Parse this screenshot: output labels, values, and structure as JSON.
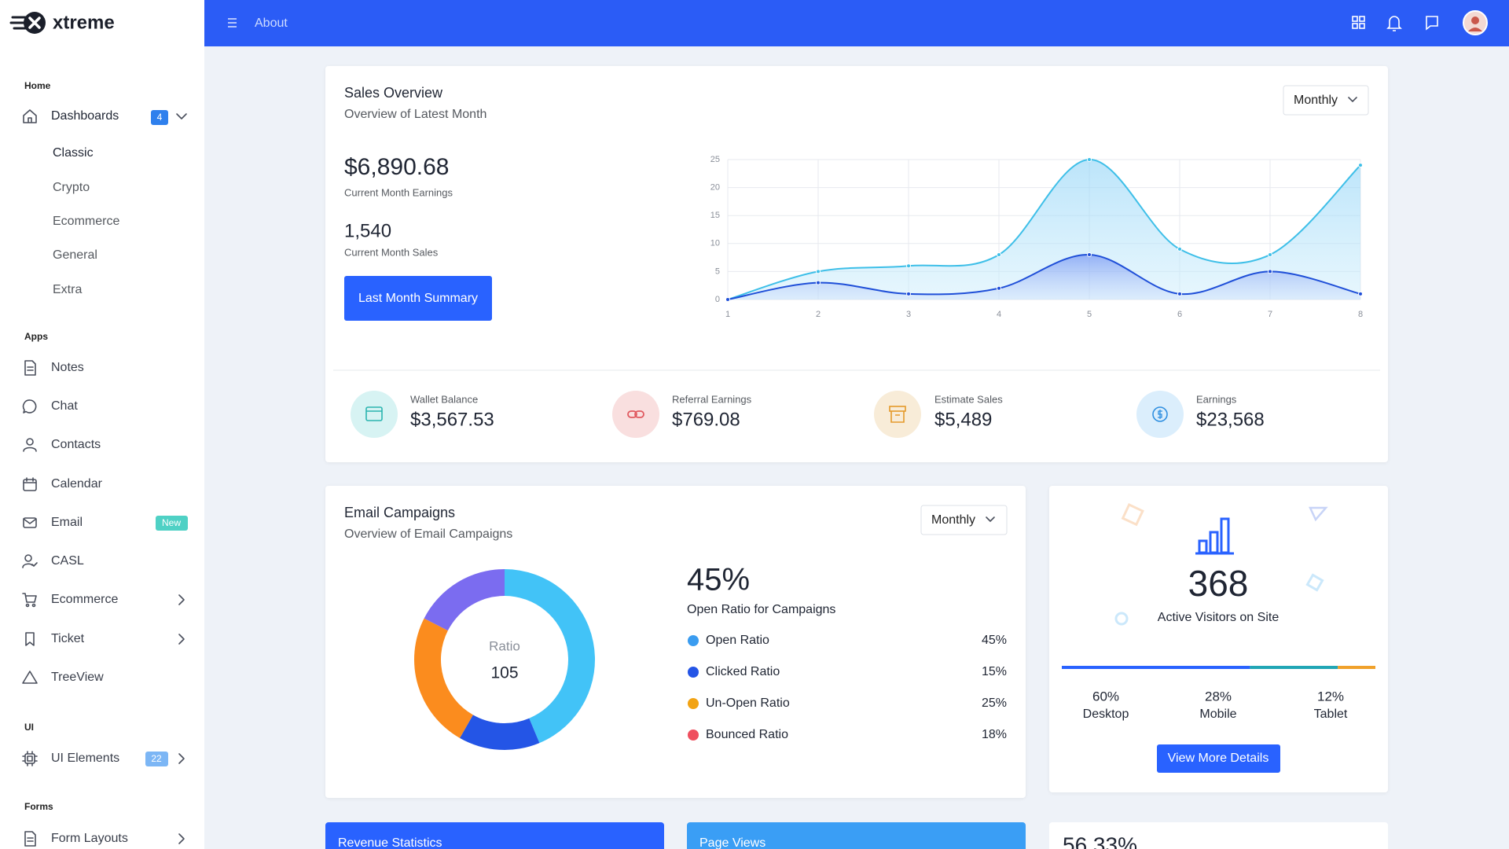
{
  "brand": "xtreme",
  "topbar": {
    "link": "About"
  },
  "sidebar": {
    "sections": [
      {
        "title": "Home",
        "items": [
          {
            "label": "Dashboards",
            "badge": "4",
            "children": [
              "Classic",
              "Crypto",
              "Ecommerce",
              "General",
              "Extra"
            ]
          }
        ]
      },
      {
        "title": "Apps",
        "items": [
          {
            "label": "Notes"
          },
          {
            "label": "Chat"
          },
          {
            "label": "Contacts"
          },
          {
            "label": "Calendar"
          },
          {
            "label": "Email",
            "badge": "New"
          },
          {
            "label": "CASL"
          },
          {
            "label": "Ecommerce"
          },
          {
            "label": "Ticket"
          },
          {
            "label": "TreeView"
          }
        ]
      },
      {
        "title": "UI",
        "items": [
          {
            "label": "UI Elements",
            "badge": "22"
          }
        ]
      },
      {
        "title": "Forms",
        "items": [
          {
            "label": "Form Layouts"
          }
        ]
      }
    ]
  },
  "sales_overview": {
    "title": "Sales Overview",
    "subtitle": "Overview of Latest Month",
    "filter": "Monthly",
    "earnings": {
      "value": "$6,890.68",
      "label": "Current Month Earnings"
    },
    "sales": {
      "value": "1,540",
      "label": "Current Month Sales"
    },
    "button": "Last Month Summary",
    "stats": [
      {
        "label": "Wallet Balance",
        "value": "$3,567.53"
      },
      {
        "label": "Referral Earnings",
        "value": "$769.08"
      },
      {
        "label": "Estimate Sales",
        "value": "$5,489"
      },
      {
        "label": "Earnings",
        "value": "$23,568"
      }
    ],
    "chart_data": {
      "type": "area",
      "x": [
        1,
        2,
        3,
        4,
        5,
        6,
        7,
        8
      ],
      "xlim": [
        1,
        8
      ],
      "xticks": [
        1,
        2,
        3,
        4,
        5,
        6,
        7,
        8
      ],
      "ylim": [
        0,
        25
      ],
      "yticks": [
        0,
        5,
        10,
        15,
        20,
        25
      ],
      "grid": true,
      "series": [
        {
          "color": "#3ebfe8",
          "values": [
            0,
            5,
            6,
            8,
            25,
            9,
            8,
            24
          ]
        },
        {
          "color": "#1f4fd8",
          "values": [
            0,
            3,
            1,
            2,
            8,
            1,
            5,
            1
          ]
        }
      ]
    }
  },
  "email_campaigns": {
    "title": "Email Campaigns",
    "subtitle": "Overview of Email Campaigns",
    "filter": "Monthly",
    "headline": "45%",
    "headline_label": "Open Ratio for Campaigns",
    "chart_data": {
      "type": "donut",
      "center_label": "Ratio",
      "center_value": "105",
      "categories": [
        "Open Ratio",
        "Clicked Ratio",
        "Un-Open Ratio",
        "Bounced Ratio"
      ],
      "values": [
        45,
        15,
        25,
        18
      ],
      "value_labels": [
        "45%",
        "15%",
        "25%",
        "18%"
      ],
      "colors": [
        "#3a9cf0",
        "#2455e6",
        "#f2a313",
        "#ef4f5f"
      ],
      "slice_colors": [
        "#42c3f7",
        "#2455e6",
        "#fb8c1e",
        "#7b6cf0"
      ]
    }
  },
  "visitors": {
    "value": "368",
    "label": "Active Visitors on Site",
    "button": "View More Details",
    "chart_data": {
      "type": "progress",
      "categories": [
        "Desktop",
        "Mobile",
        "Tablet"
      ],
      "values": [
        60,
        28,
        12
      ],
      "value_labels": [
        "60%",
        "28%",
        "12%"
      ],
      "colors": [
        "#2962ff",
        "#21a6b5",
        "#f0a12b"
      ]
    }
  },
  "bottom": {
    "revenue": "Revenue Statistics",
    "page_views": "Page Views",
    "percent": "56.33%"
  }
}
